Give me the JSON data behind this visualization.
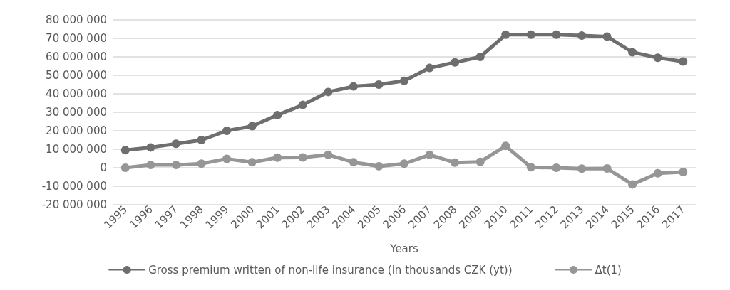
{
  "chart_data": {
    "type": "line",
    "xlabel": "Years",
    "categories": [
      "1995",
      "1996",
      "1997",
      "1998",
      "1999",
      "2000",
      "2001",
      "2002",
      "2003",
      "2004",
      "2005",
      "2006",
      "2007",
      "2008",
      "2009",
      "2010",
      "2011",
      "2012",
      "2013",
      "2014",
      "2015",
      "2016",
      "2017"
    ],
    "series": [
      {
        "name": "Gross premium written of non-life insurance (in thousands CZK (yt))",
        "color": "#6e6e6e",
        "values": [
          9500000,
          11000000,
          13000000,
          15000000,
          20000000,
          22500000,
          28500000,
          34000000,
          41000000,
          44000000,
          45000000,
          47000000,
          54000000,
          57000000,
          60000000,
          72000000,
          72000000,
          72000000,
          71500000,
          71000000,
          62500000,
          59500000,
          57500000
        ]
      },
      {
        "name": "Δt(1)",
        "color": "#969696",
        "values": [
          0,
          1500000,
          1500000,
          2200000,
          4800000,
          3000000,
          5500000,
          5600000,
          7000000,
          3000000,
          800000,
          2200000,
          7000000,
          2800000,
          3200000,
          11800000,
          300000,
          0,
          -500000,
          -400000,
          -9000000,
          -3000000,
          -2300000
        ]
      }
    ],
    "ylim": [
      -20000000,
      80000000
    ],
    "yticks": [
      {
        "value": -20000000,
        "label": "-20 000 000"
      },
      {
        "value": -10000000,
        "label": "-10 000 000"
      },
      {
        "value": 0,
        "label": "0"
      },
      {
        "value": 10000000,
        "label": "10 000 000"
      },
      {
        "value": 20000000,
        "label": "20 000 000"
      },
      {
        "value": 30000000,
        "label": "30 000 000"
      },
      {
        "value": 40000000,
        "label": "40 000 000"
      },
      {
        "value": 50000000,
        "label": "50 000 000"
      },
      {
        "value": 60000000,
        "label": "60 000 000"
      },
      {
        "value": 70000000,
        "label": "70 000 000"
      },
      {
        "value": 80000000,
        "label": "80 000 000"
      }
    ],
    "grid": "y",
    "legend": "bottom",
    "marker": "circle",
    "line_style": "solid"
  }
}
